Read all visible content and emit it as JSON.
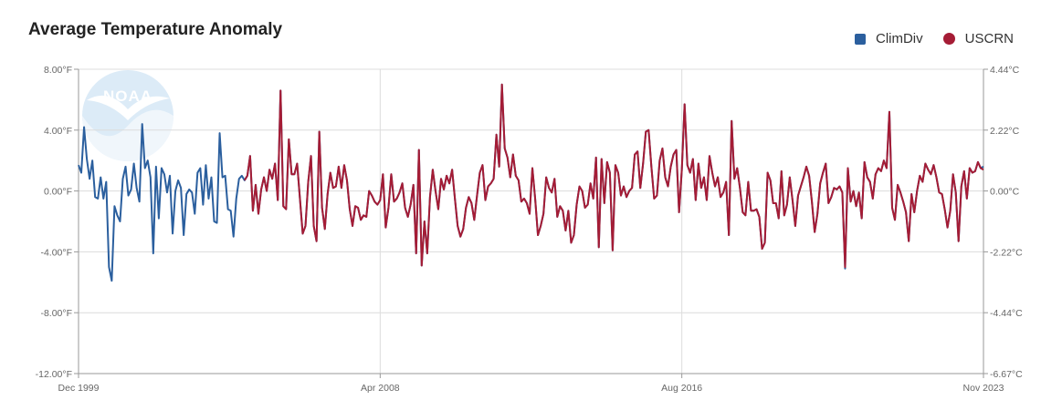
{
  "chart_data": {
    "type": "line",
    "title": "Average Temperature Anomaly",
    "x_start": "Dec 1999",
    "x_end": "Nov 2023",
    "x_tick_labels": [
      "Dec 1999",
      "Apr 2008",
      "Aug 2016",
      "Nov 2023"
    ],
    "y_left_ticks": [
      "8.00°F",
      "4.00°F",
      "0.00°F",
      "-4.00°F",
      "-8.00°F",
      "-12.00°F"
    ],
    "y_left_values": [
      8,
      4,
      0,
      -4,
      -8,
      -12
    ],
    "y_right_ticks": [
      "4.44°C",
      "2.22°C",
      "0.00°C",
      "-2.22°C",
      "-4.44°C",
      "-6.67°C"
    ],
    "ylim": [
      -12,
      8
    ],
    "ylabel": "",
    "xlabel": "",
    "grid": true,
    "legend_position": "top-right",
    "series": [
      {
        "name": "ClimDiv",
        "color": "#2b5f9e",
        "marker": "square",
        "start_index": 0,
        "values": [
          1.7,
          1.2,
          4.2,
          2.1,
          0.8,
          2.0,
          -0.4,
          -0.5,
          0.9,
          -0.5,
          0.6,
          -5.0,
          -5.9,
          -1.0,
          -1.6,
          -2.0,
          0.8,
          1.6,
          -0.3,
          0.1,
          1.8,
          0.2,
          -0.7,
          4.4,
          1.5,
          2.0,
          0.9,
          -4.1,
          1.6,
          -1.8,
          1.5,
          1.1,
          -0.1,
          1.0,
          -2.8,
          0.0,
          0.7,
          0.2,
          -2.9,
          -0.2,
          0.1,
          -0.1,
          -1.5,
          1.2,
          1.5,
          -0.9,
          1.7,
          -0.5,
          0.9,
          -2.0,
          -2.1,
          3.8,
          0.9,
          1.0,
          -1.2,
          -1.3,
          -3.0,
          -0.5,
          0.8,
          1.0,
          0.7,
          1.0,
          2.3,
          -1.3,
          0.4,
          -1.5,
          0.1,
          0.9,
          0.0,
          1.4,
          0.8,
          1.8,
          -0.6,
          6.6,
          -1.0,
          -1.2,
          3.4,
          1.1,
          1.1,
          1.8,
          -0.5,
          -2.8,
          -2.3,
          0.6,
          2.3,
          -2.3,
          -3.3,
          3.9,
          -1.1,
          -2.5,
          -0.2,
          1.2,
          0.2,
          0.3,
          1.6,
          0.2,
          1.7,
          0.7,
          -1.2,
          -2.3,
          -1.0,
          -1.1,
          -1.9,
          -1.6,
          -1.7,
          0.0,
          -0.3,
          -0.7,
          -0.9,
          -0.6,
          1.1,
          -2.4,
          -1.1,
          1.1,
          -0.7,
          -0.5,
          -0.1,
          0.5,
          -1.1,
          -1.7,
          -0.9,
          0.4,
          -4.1,
          2.7,
          -4.9,
          -2.0,
          -4.1,
          -0.4,
          1.4,
          0.0,
          -1.2,
          0.8,
          0.1,
          1.0,
          0.5,
          1.4,
          -0.5,
          -2.3,
          -3.0,
          -2.5,
          -1.1,
          -0.4,
          -0.8,
          -1.9,
          -0.3,
          1.2,
          1.7,
          -0.6,
          0.3,
          0.5,
          0.8,
          3.7,
          1.6,
          7.0,
          2.8,
          2.2,
          0.9,
          2.4,
          1.0,
          0.7,
          -0.7,
          -0.5,
          -0.8,
          -1.5,
          1.5,
          -0.5,
          -2.9,
          -2.3,
          -1.5,
          0.9,
          0.2,
          -0.1,
          0.8,
          -1.7,
          -1.0,
          -1.3,
          -2.6,
          -1.3,
          -3.4,
          -2.9,
          -0.9,
          0.3,
          0.0,
          -1.1,
          -0.9,
          0.5,
          -0.5,
          2.2,
          -3.7,
          2.1,
          -0.8,
          1.9,
          1.2,
          -3.9,
          1.7,
          1.2,
          -0.3,
          0.3,
          -0.4,
          0.0,
          0.2,
          2.4,
          2.6,
          0.2,
          1.8,
          3.9,
          4.0,
          1.6,
          -0.5,
          -0.3,
          2.0,
          2.8,
          0.9,
          0.3,
          1.6,
          2.4,
          2.7,
          -1.4,
          1.4,
          5.7,
          1.7,
          1.2,
          2.1,
          -0.6,
          1.8,
          0.2,
          0.9,
          -0.6,
          2.3,
          1.2,
          0.3,
          0.9,
          -0.4,
          -0.1,
          0.6,
          -2.9,
          4.6,
          0.8,
          1.5,
          0.2,
          -1.4,
          -1.6,
          0.6,
          -1.3,
          -1.3,
          -1.2,
          -1.7,
          -3.8,
          -3.4,
          1.2,
          0.7,
          -0.8,
          -0.8,
          -1.8,
          1.3,
          -1.6,
          -0.9,
          0.9,
          -0.6,
          -2.3,
          -0.3,
          0.3,
          0.9,
          1.6,
          1.0,
          -0.7,
          -2.7,
          -1.5,
          0.5,
          1.2,
          1.8,
          -0.8,
          -0.4,
          0.2,
          0.1,
          0.3,
          -0.1,
          -5.1,
          1.5,
          -0.7,
          0.0,
          -1.0,
          -0.1,
          -1.8,
          1.9,
          0.9,
          0.6,
          -0.5,
          1.1,
          1.5,
          1.3,
          2.0,
          1.5,
          5.2,
          -1.1,
          -1.9,
          0.4,
          -0.1,
          -0.7,
          -1.4,
          -3.3,
          -0.2,
          -1.4,
          0.0,
          1.0,
          0.6,
          1.8,
          1.4,
          1.1,
          1.7,
          0.9,
          -0.1,
          -0.2,
          -1.2,
          -2.4,
          -1.3,
          1.1,
          -0.1,
          -3.3,
          0.3,
          1.3,
          -0.5,
          1.5,
          1.2,
          1.3,
          1.9,
          1.5,
          1.6
        ]
      },
      {
        "name": "USCRN",
        "color": "#a51c35",
        "marker": "circle",
        "start_index": 60,
        "values": [
          0.7,
          1.0,
          2.3,
          -1.3,
          0.4,
          -1.5,
          0.1,
          0.9,
          0.0,
          1.4,
          0.8,
          1.8,
          -0.6,
          6.6,
          -1.0,
          -1.2,
          3.4,
          1.1,
          1.1,
          1.8,
          -0.5,
          -2.8,
          -2.3,
          0.6,
          2.3,
          -2.3,
          -3.3,
          3.9,
          -1.1,
          -2.5,
          -0.2,
          1.2,
          0.2,
          0.3,
          1.6,
          0.2,
          1.7,
          0.7,
          -1.2,
          -2.3,
          -1.0,
          -1.1,
          -1.9,
          -1.6,
          -1.7,
          0.0,
          -0.3,
          -0.7,
          -0.9,
          -0.6,
          1.1,
          -2.4,
          -1.1,
          1.1,
          -0.7,
          -0.5,
          -0.1,
          0.5,
          -1.1,
          -1.7,
          -0.9,
          0.4,
          -4.1,
          2.7,
          -4.9,
          -2.0,
          -4.1,
          -0.4,
          1.4,
          0.0,
          -1.2,
          0.8,
          0.1,
          1.0,
          0.5,
          1.4,
          -0.5,
          -2.3,
          -3.0,
          -2.5,
          -1.1,
          -0.4,
          -0.8,
          -1.9,
          -0.3,
          1.2,
          1.7,
          -0.6,
          0.3,
          0.5,
          0.8,
          3.7,
          1.6,
          7.0,
          2.8,
          2.2,
          0.9,
          2.4,
          1.0,
          0.7,
          -0.7,
          -0.5,
          -0.8,
          -1.5,
          1.5,
          -0.5,
          -2.9,
          -2.3,
          -1.5,
          0.9,
          0.2,
          -0.1,
          0.8,
          -1.7,
          -1.0,
          -1.3,
          -2.6,
          -1.3,
          -3.4,
          -2.9,
          -0.9,
          0.3,
          0.0,
          -1.1,
          -0.9,
          0.5,
          -0.5,
          2.2,
          -3.7,
          2.1,
          -0.8,
          1.9,
          1.2,
          -3.9,
          1.7,
          1.2,
          -0.3,
          0.3,
          -0.4,
          0.0,
          0.2,
          2.4,
          2.6,
          0.2,
          1.8,
          3.9,
          4.0,
          1.6,
          -0.5,
          -0.3,
          2.0,
          2.8,
          0.9,
          0.3,
          1.6,
          2.4,
          2.7,
          -1.4,
          1.4,
          5.7,
          1.7,
          1.2,
          2.1,
          -0.6,
          1.8,
          0.2,
          0.9,
          -0.6,
          2.3,
          1.2,
          0.3,
          0.9,
          -0.4,
          -0.1,
          0.6,
          -2.9,
          4.6,
          0.8,
          1.5,
          0.2,
          -1.4,
          -1.6,
          0.6,
          -1.3,
          -1.3,
          -1.2,
          -1.7,
          -3.8,
          -3.4,
          1.2,
          0.7,
          -0.8,
          -0.8,
          -1.8,
          1.3,
          -1.6,
          -0.9,
          0.9,
          -0.6,
          -2.3,
          -0.3,
          0.3,
          0.9,
          1.6,
          1.0,
          -0.7,
          -2.7,
          -1.5,
          0.5,
          1.2,
          1.8,
          -0.8,
          -0.4,
          0.2,
          0.1,
          0.3,
          -0.1,
          -5.0,
          1.5,
          -0.7,
          0.0,
          -1.0,
          -0.1,
          -1.8,
          1.9,
          0.9,
          0.6,
          -0.5,
          1.1,
          1.5,
          1.3,
          2.0,
          1.5,
          5.2,
          -1.1,
          -1.9,
          0.4,
          -0.1,
          -0.7,
          -1.4,
          -3.3,
          -0.2,
          -1.4,
          0.0,
          1.0,
          0.6,
          1.8,
          1.4,
          1.1,
          1.7,
          0.9,
          -0.1,
          -0.2,
          -1.2,
          -2.4,
          -1.3,
          1.1,
          -0.1,
          -3.3,
          0.3,
          1.3,
          -0.5,
          1.5,
          1.2,
          1.3,
          1.9,
          1.5,
          1.4
        ]
      }
    ]
  },
  "watermark": {
    "text": "NOAA",
    "colors": {
      "sky": "#d6e8f6",
      "wave": "#eef5fb",
      "bird": "#ffffff"
    }
  },
  "colors": {
    "grid": "#dcdcdc",
    "axis": "#999999",
    "tick_text": "#666666"
  }
}
